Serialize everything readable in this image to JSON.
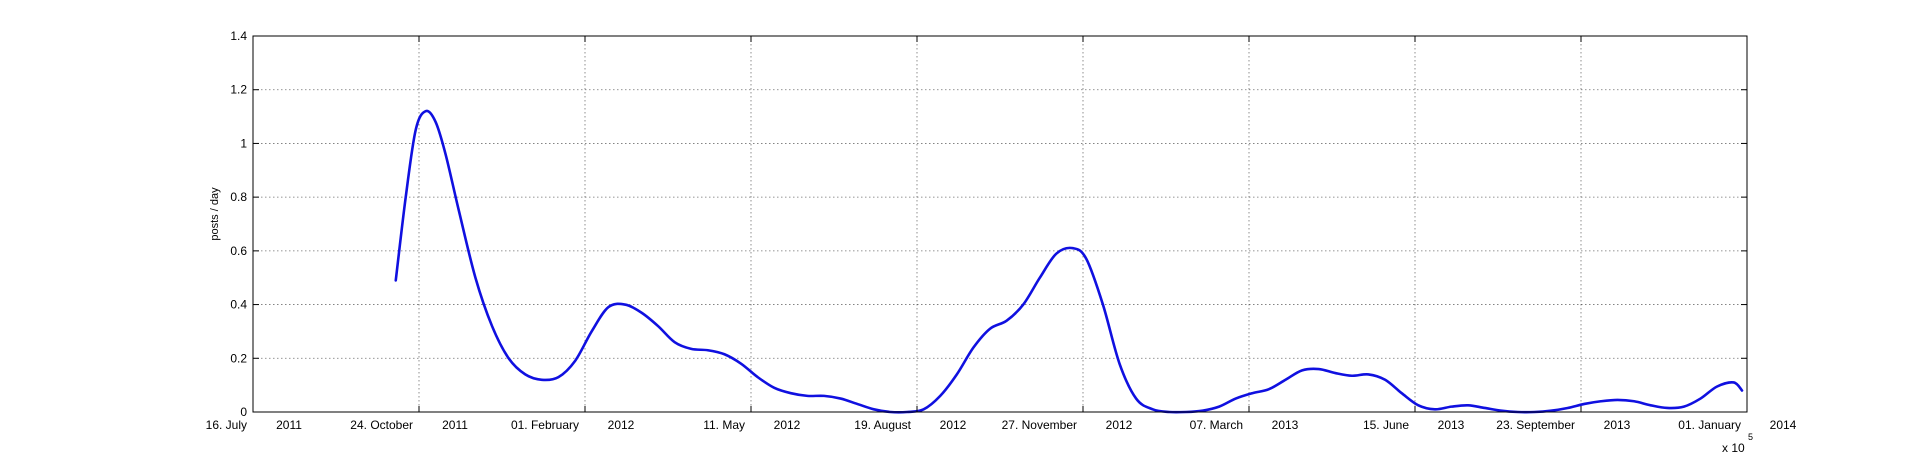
{
  "chart_data": {
    "type": "line",
    "title": "",
    "xlabel": "",
    "ylabel": "posts / day",
    "exponent_label": "x 10",
    "exponent_superscript": "5",
    "xlim": [
      "2011-07-16",
      "2014-01-01"
    ],
    "ylim": [
      0,
      1.4
    ],
    "y_ticks": [
      0,
      0.2,
      0.4,
      0.6,
      0.8,
      1,
      1.2,
      1.4
    ],
    "y_tick_labels": [
      "0",
      "0.2",
      "0.4",
      "0.6",
      "0.8",
      "1",
      "1.2",
      "1.4"
    ],
    "grid": true,
    "x_ticks": [
      {
        "date": "2011-07-16",
        "label": "16. July",
        "year": "2011"
      },
      {
        "date": "2011-10-24",
        "label": "24. October",
        "year": "2011"
      },
      {
        "date": "2012-02-01",
        "label": "01. February",
        "year": "2012"
      },
      {
        "date": "2012-05-11",
        "label": "11. May",
        "year": "2012"
      },
      {
        "date": "2012-08-19",
        "label": "19. August",
        "year": "2012"
      },
      {
        "date": "2012-11-27",
        "label": "27. November",
        "year": "2012"
      },
      {
        "date": "2013-03-07",
        "label": "07. March",
        "year": "2013"
      },
      {
        "date": "2013-06-15",
        "label": "15. June",
        "year": "2013"
      },
      {
        "date": "2013-09-23",
        "label": "23. September",
        "year": "2013"
      },
      {
        "date": "2014-01-01",
        "label": "01. January",
        "year": "2014"
      }
    ],
    "series": [
      {
        "color": "#1010e0",
        "x": [
          "2011-10-10",
          "2011-10-16",
          "2011-10-22",
          "2011-10-28",
          "2011-11-03",
          "2011-11-09",
          "2011-11-17",
          "2011-11-27",
          "2011-12-07",
          "2011-12-17",
          "2011-12-27",
          "2012-01-06",
          "2012-01-16",
          "2012-01-26",
          "2012-02-05",
          "2012-02-15",
          "2012-02-25",
          "2012-03-06",
          "2012-03-16",
          "2012-03-26",
          "2012-04-05",
          "2012-04-15",
          "2012-04-25",
          "2012-05-05",
          "2012-05-15",
          "2012-05-25",
          "2012-06-04",
          "2012-06-14",
          "2012-06-24",
          "2012-07-04",
          "2012-07-14",
          "2012-07-24",
          "2012-08-03",
          "2012-08-13",
          "2012-08-23",
          "2012-09-02",
          "2012-09-12",
          "2012-09-22",
          "2012-10-02",
          "2012-10-12",
          "2012-10-22",
          "2012-11-01",
          "2012-11-11",
          "2012-11-21",
          "2012-11-29",
          "2012-12-09",
          "2012-12-19",
          "2012-12-29",
          "2013-01-08",
          "2013-01-18",
          "2013-01-28",
          "2013-02-07",
          "2013-02-17",
          "2013-02-27",
          "2013-03-09",
          "2013-03-19",
          "2013-03-29",
          "2013-04-08",
          "2013-04-18",
          "2013-04-28",
          "2013-05-08",
          "2013-05-18",
          "2013-05-28",
          "2013-06-07",
          "2013-06-17",
          "2013-06-27",
          "2013-07-07",
          "2013-07-17",
          "2013-07-27",
          "2013-08-06",
          "2013-08-16",
          "2013-08-26",
          "2013-09-05",
          "2013-09-15",
          "2013-09-25",
          "2013-10-05",
          "2013-10-15",
          "2013-10-25",
          "2013-11-04",
          "2013-11-14",
          "2013-11-24",
          "2013-12-04",
          "2013-12-14",
          "2013-12-24",
          "2013-12-29"
        ],
        "y": [
          0.49,
          0.8,
          1.05,
          1.12,
          1.08,
          0.96,
          0.75,
          0.5,
          0.32,
          0.2,
          0.14,
          0.12,
          0.13,
          0.19,
          0.3,
          0.39,
          0.4,
          0.37,
          0.32,
          0.26,
          0.235,
          0.23,
          0.215,
          0.18,
          0.13,
          0.09,
          0.07,
          0.06,
          0.06,
          0.05,
          0.03,
          0.01,
          0.0,
          0.0,
          0.01,
          0.06,
          0.14,
          0.24,
          0.31,
          0.34,
          0.4,
          0.5,
          0.59,
          0.61,
          0.57,
          0.4,
          0.18,
          0.05,
          0.01,
          0.0,
          0.0,
          0.005,
          0.02,
          0.05,
          0.07,
          0.085,
          0.12,
          0.155,
          0.16,
          0.145,
          0.135,
          0.14,
          0.12,
          0.07,
          0.025,
          0.01,
          0.02,
          0.025,
          0.015,
          0.005,
          0.0,
          0.0,
          0.005,
          0.015,
          0.03,
          0.04,
          0.045,
          0.04,
          0.025,
          0.015,
          0.02,
          0.05,
          0.095,
          0.11,
          0.08
        ]
      }
    ]
  }
}
